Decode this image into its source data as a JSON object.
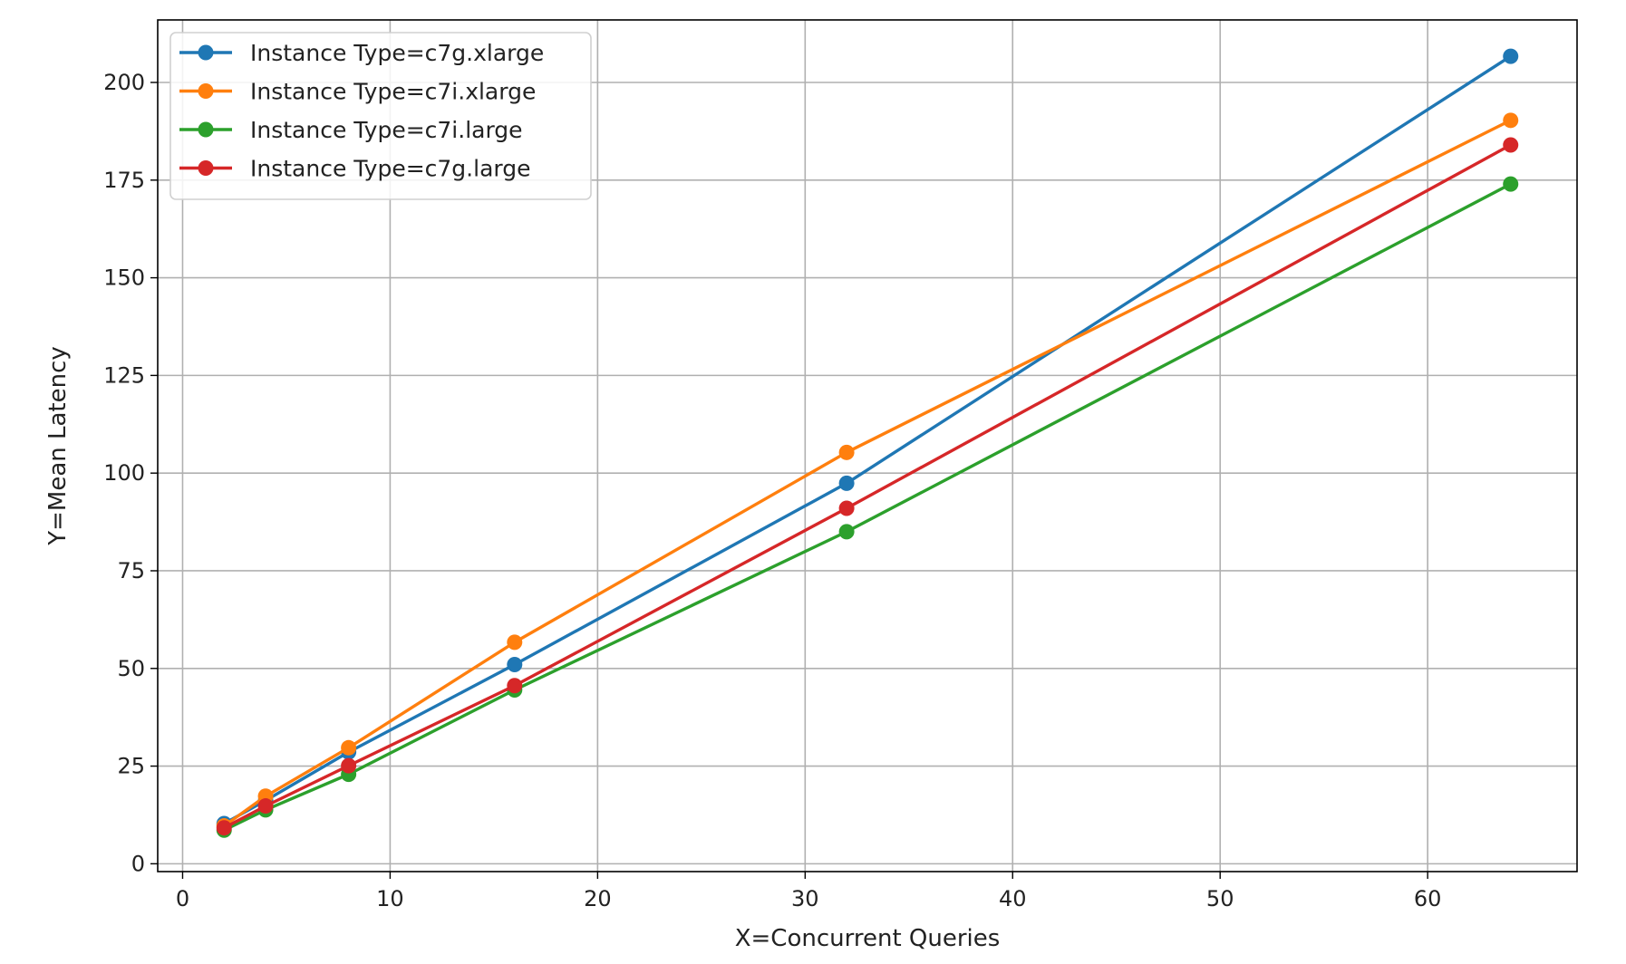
{
  "chart_data": {
    "type": "line",
    "title": "",
    "xlabel": "X=Concurrent Queries",
    "ylabel": "Y=Mean Latency",
    "xlim": [
      -1.2,
      67.2
    ],
    "ylim": [
      -2,
      216
    ],
    "xticks": [
      0,
      10,
      20,
      30,
      40,
      50,
      60
    ],
    "yticks": [
      0,
      25,
      50,
      75,
      100,
      125,
      150,
      175,
      200
    ],
    "grid": true,
    "legend_position": "upper left",
    "x": [
      2,
      4,
      8,
      16,
      32,
      64
    ],
    "series": [
      {
        "name": "Instance Type=c7g.xlarge",
        "color": "#1f77b4",
        "values": [
          10.3,
          16.2,
          28.6,
          51.0,
          97.4,
          206.7
        ]
      },
      {
        "name": "Instance Type=c7i.xlarge",
        "color": "#ff7f0e",
        "values": [
          9.7,
          17.3,
          29.7,
          56.7,
          105.3,
          190.3
        ]
      },
      {
        "name": "Instance Type=c7i.large",
        "color": "#2ca02c",
        "values": [
          8.6,
          13.8,
          22.9,
          44.5,
          85.0,
          174.0
        ]
      },
      {
        "name": "Instance Type=c7g.large",
        "color": "#d62728",
        "values": [
          9.2,
          14.8,
          25.1,
          45.6,
          91.0,
          184.0
        ]
      }
    ]
  }
}
